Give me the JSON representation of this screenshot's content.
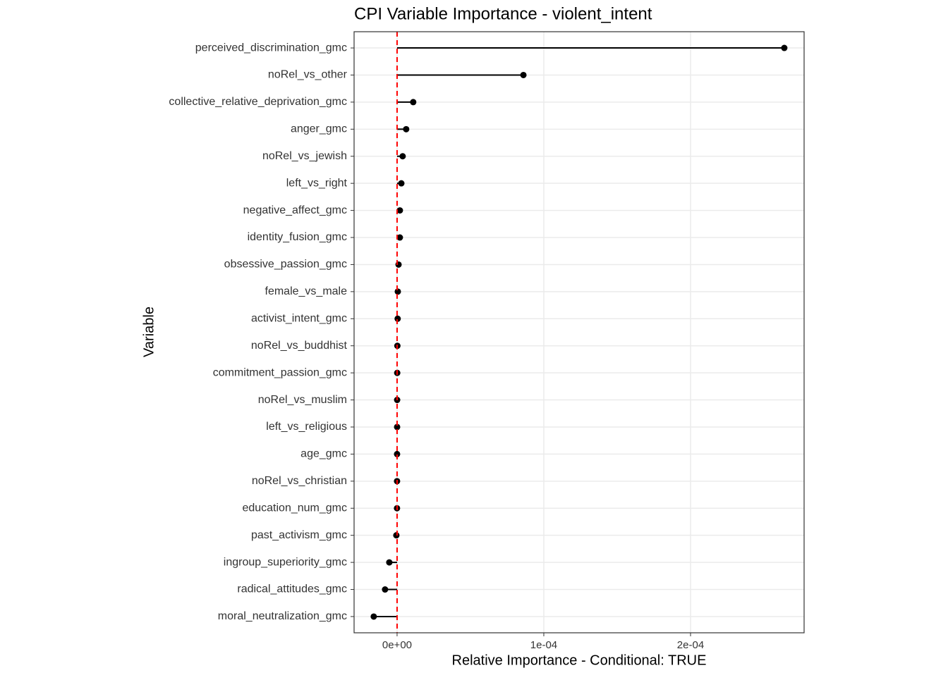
{
  "chart_data": {
    "type": "lollipop",
    "title": "CPI Variable Importance - violent_intent",
    "x_label": "Relative Importance - Conditional: TRUE",
    "y_label": "Variable",
    "categories": [
      "perceived_discrimination_gmc",
      "noRel_vs_other",
      "collective_relative_deprivation_gmc",
      "anger_gmc",
      "noRel_vs_jewish",
      "left_vs_right",
      "negative_affect_gmc",
      "identity_fusion_gmc",
      "obsessive_passion_gmc",
      "female_vs_male",
      "activist_intent_gmc",
      "noRel_vs_buddhist",
      "commitment_passion_gmc",
      "noRel_vs_muslim",
      "left_vs_religious",
      "age_gmc",
      "noRel_vs_christian",
      "education_num_gmc",
      "past_activism_gmc",
      "ingroup_superiority_gmc",
      "radical_attitudes_gmc",
      "moral_neutralization_gmc"
    ],
    "values": [
      0.0002639,
      8.61e-05,
      1.1e-05,
      6.2e-06,
      3.8e-06,
      2.9e-06,
      1.9e-06,
      1.9e-06,
      1e-06,
      5e-07,
      4e-07,
      2e-07,
      1e-07,
      5e-08,
      3e-08,
      0,
      -2e-08,
      -5e-08,
      -5e-07,
      -5.3e-06,
      -8.2e-06,
      -1.59e-05
    ],
    "color": "#000000",
    "xlim": [
      -2.93e-05,
      0.0002774
    ],
    "xticks": [
      {
        "value": 0,
        "label": "0e+00"
      },
      {
        "value": 0.0001,
        "label": "1e-04"
      },
      {
        "value": 0.0002,
        "label": "2e-04"
      }
    ],
    "reference_line": {
      "value": 0,
      "color": "#ff0000"
    },
    "grid": true
  }
}
